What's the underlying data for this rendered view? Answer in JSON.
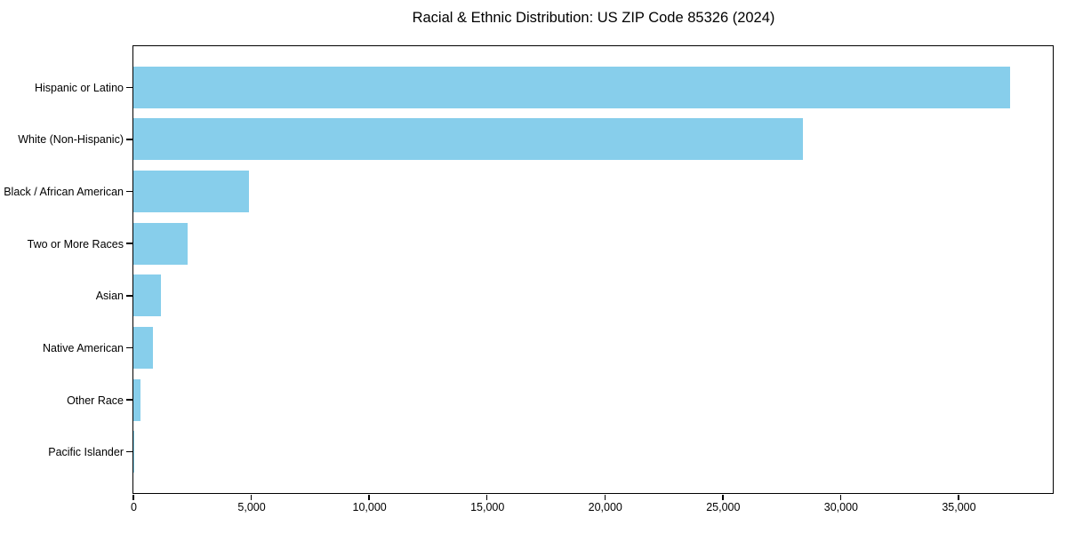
{
  "chart_data": {
    "type": "bar",
    "orientation": "horizontal",
    "title": "Racial & Ethnic Distribution: US ZIP Code 85326 (2024)",
    "categories": [
      "Hispanic or Latino",
      "White (Non-Hispanic)",
      "Black / African American",
      "Two or More Races",
      "Asian",
      "Native American",
      "Other Race",
      "Pacific Islander"
    ],
    "values": [
      37200,
      28400,
      4900,
      2300,
      1170,
      830,
      300,
      20
    ],
    "xlim": [
      0,
      39000
    ],
    "x_ticks": [
      0,
      5000,
      10000,
      15000,
      20000,
      25000,
      30000,
      35000
    ],
    "x_tick_labels": [
      "0",
      "5,000",
      "10,000",
      "15,000",
      "20,000",
      "25,000",
      "30,000",
      "35,000"
    ],
    "xlabel": "",
    "ylabel": "",
    "bar_color": "#87CEEB",
    "background_color": "#ffffff",
    "grid": false,
    "legend": false,
    "categories_order": "largest_at_top"
  }
}
